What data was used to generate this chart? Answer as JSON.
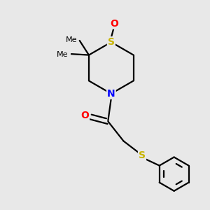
{
  "bg_color": "#e8e8e8",
  "bond_color": "#000000",
  "S_color": "#c8b400",
  "N_color": "#0000ff",
  "O_color": "#ff0000",
  "line_width": 1.6,
  "figsize": [
    3.0,
    3.0
  ],
  "dpi": 100,
  "xlim": [
    0,
    10
  ],
  "ylim": [
    0,
    10
  ]
}
